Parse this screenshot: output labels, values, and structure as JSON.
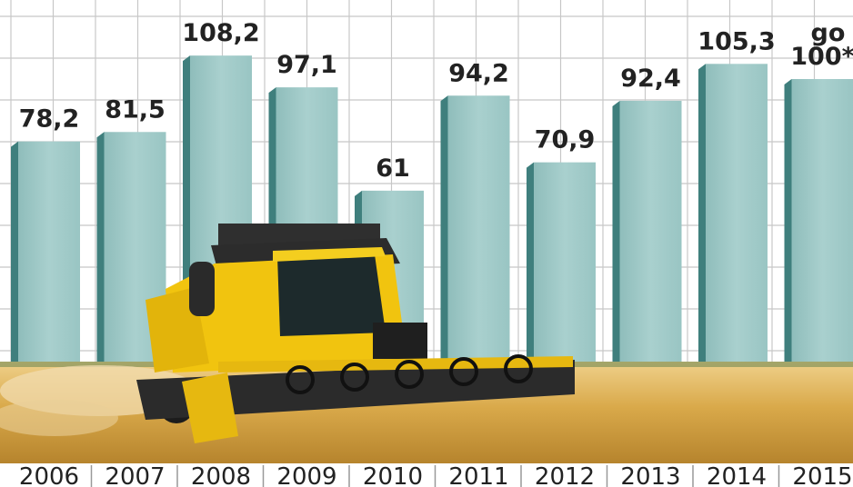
{
  "chart_data": {
    "type": "bar",
    "title": "",
    "xlabel": "",
    "ylabel": "",
    "categories": [
      "2006",
      "2007",
      "2008",
      "2009",
      "2010",
      "2011",
      "2012",
      "2013",
      "2014",
      "2015"
    ],
    "values": [
      78.2,
      81.5,
      108.2,
      97.1,
      61,
      94.2,
      70.9,
      92.4,
      105.3,
      100
    ],
    "value_labels": [
      "78,2",
      "81,5",
      "108,2",
      "97,1",
      "61",
      "94,2",
      "70,9",
      "92,4",
      "105,3",
      "100*"
    ],
    "value_prefix_2015": "go",
    "ylim": [
      0,
      125
    ],
    "grid": true,
    "legend": "none",
    "colors": {
      "bar": "#a3cbc9",
      "bar_side": "#3f7f7d",
      "grid": "#c7c7c7",
      "field": "#d9a94a",
      "harvester": "#f1c40f"
    }
  }
}
